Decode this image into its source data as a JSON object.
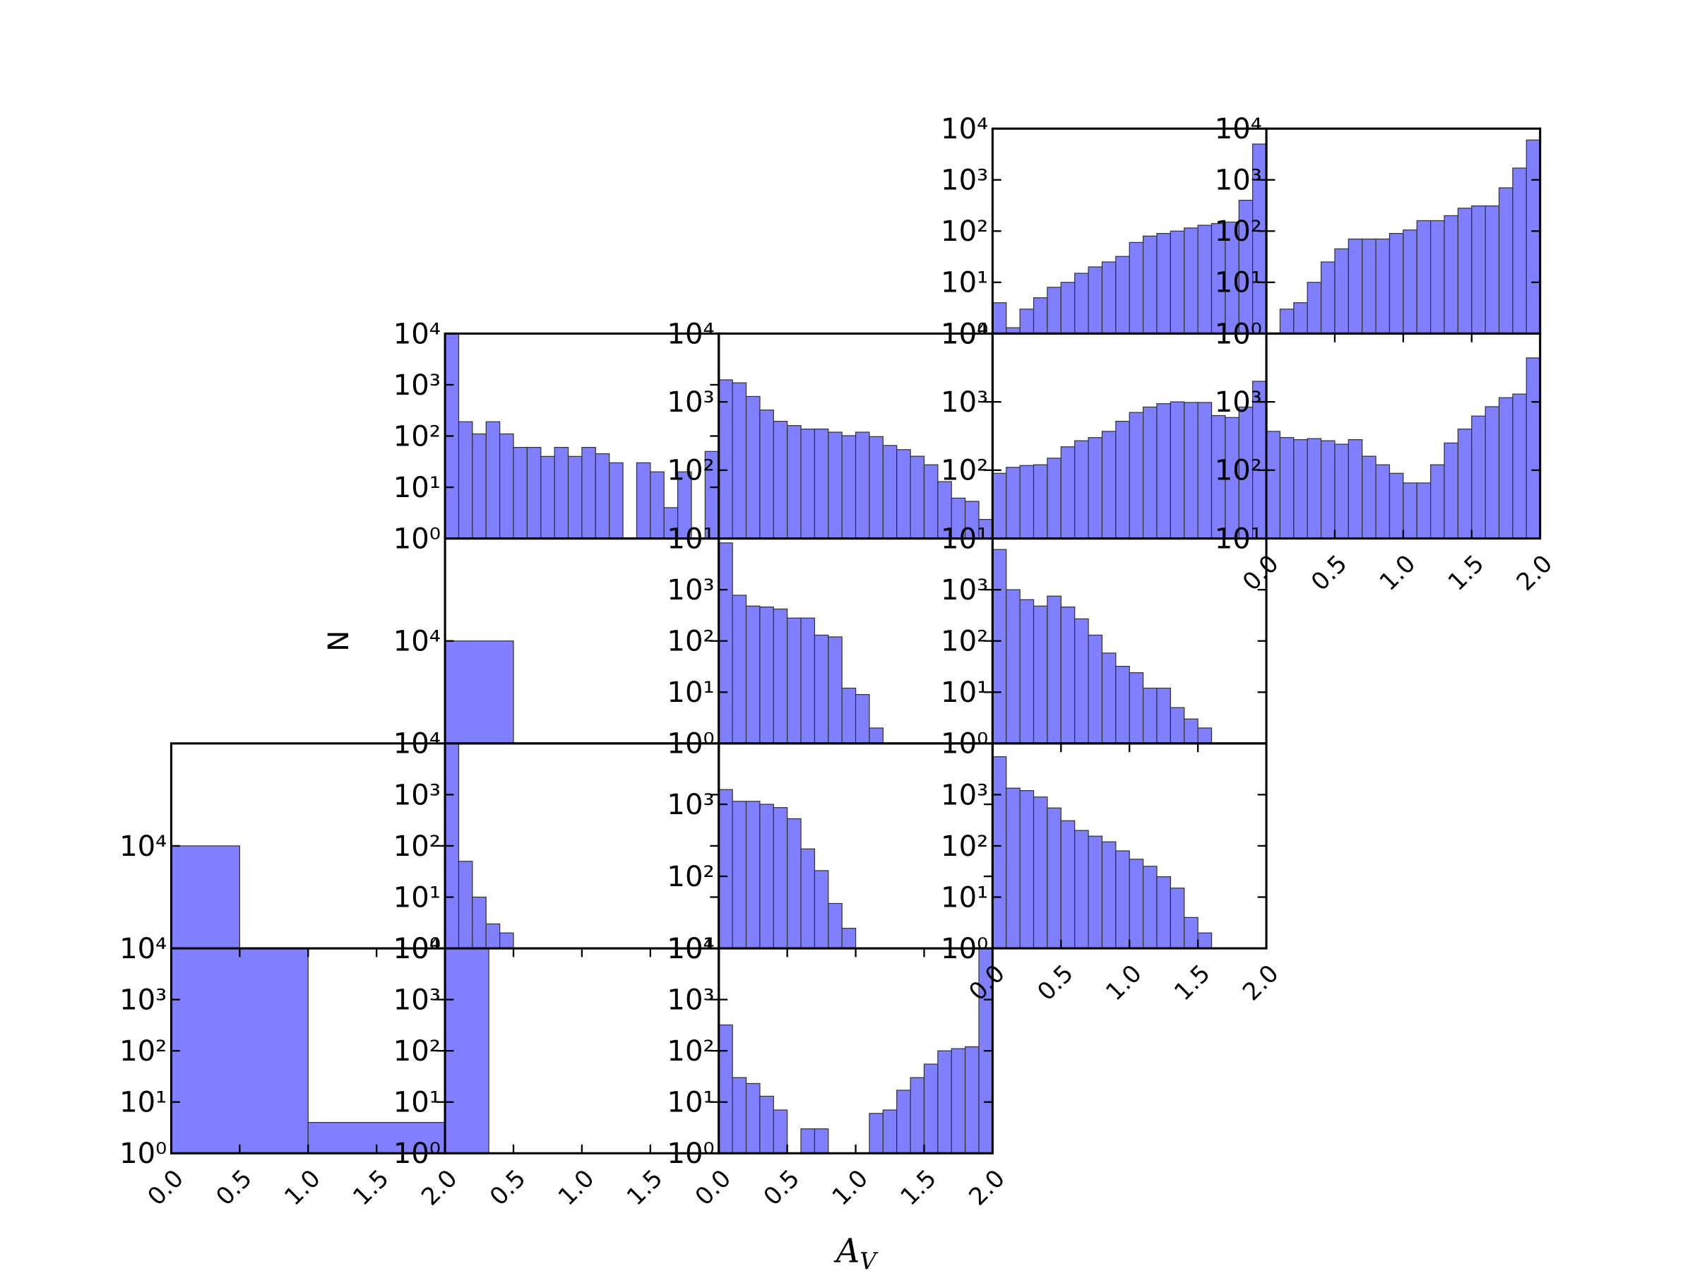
{
  "chart_data": [
    {
      "type": "histogram",
      "color": "#7f7fff",
      "xlim": [
        0,
        2
      ],
      "ylim": [
        1,
        10000
      ],
      "log_y": true,
      "bins": [
        0,
        0.1,
        0.2,
        0.3,
        0.4,
        0.5,
        0.6,
        0.7,
        0.8,
        0.9,
        1,
        1.1,
        1.2,
        1.3,
        1.4,
        1.5,
        1.6,
        1.7,
        1.8,
        1.9,
        2
      ],
      "values": [
        4,
        1.3,
        3,
        5,
        8,
        10,
        15,
        20,
        25,
        32,
        60,
        80,
        90,
        100,
        115,
        130,
        140,
        150,
        400,
        5000
      ],
      "yticks": [
        {
          "value": 1,
          "label": "10⁰"
        },
        {
          "value": 10,
          "label": "10¹"
        },
        {
          "value": 100,
          "label": "10²"
        },
        {
          "value": 1000,
          "label": "10³"
        },
        {
          "value": 10000,
          "label": "10⁴"
        }
      ]
    },
    {
      "type": "histogram",
      "color": "#7f7fff",
      "xlim": [
        0,
        2
      ],
      "ylim": [
        1,
        10000
      ],
      "log_y": true,
      "bins": [
        0,
        0.1,
        0.2,
        0.3,
        0.4,
        0.5,
        0.6,
        0.7,
        0.8,
        0.9,
        1,
        1.1,
        1.2,
        1.3,
        1.4,
        1.5,
        1.6,
        1.7,
        1.8,
        1.9,
        2
      ],
      "values": [
        0,
        3,
        4,
        10,
        25,
        45,
        70,
        70,
        70,
        90,
        105,
        160,
        160,
        200,
        280,
        310,
        310,
        700,
        1700,
        6000
      ],
      "yticks": [
        {
          "value": 1,
          "label": "10⁰"
        },
        {
          "value": 10,
          "label": "10¹"
        },
        {
          "value": 100,
          "label": "10²"
        },
        {
          "value": 1000,
          "label": "10³"
        },
        {
          "value": 10000,
          "label": "10⁴"
        }
      ]
    },
    {
      "type": "histogram",
      "color": "#7f7fff",
      "xlim": [
        0,
        2
      ],
      "ylim": [
        1,
        10000
      ],
      "log_y": true,
      "bins": [
        0,
        0.1,
        0.2,
        0.3,
        0.4,
        0.5,
        0.6,
        0.7,
        0.8,
        0.9,
        1,
        1.1,
        1.2,
        1.3,
        1.4,
        1.5,
        1.6,
        1.7,
        1.8,
        1.9,
        2
      ],
      "values": [
        10000,
        190,
        110,
        190,
        110,
        60,
        60,
        40,
        60,
        40,
        60,
        45,
        30,
        0,
        30,
        20,
        4,
        20,
        0,
        50
      ],
      "yticks": [
        {
          "value": 1,
          "label": "10⁰"
        },
        {
          "value": 10,
          "label": "10¹"
        },
        {
          "value": 100,
          "label": "10²"
        },
        {
          "value": 1000,
          "label": "10³"
        },
        {
          "value": 10000,
          "label": "10⁴"
        }
      ]
    },
    {
      "type": "histogram",
      "color": "#7f7fff",
      "xlim": [
        0,
        2
      ],
      "ylim": [
        10,
        10000
      ],
      "log_y": true,
      "bins": [
        0,
        0.1,
        0.2,
        0.3,
        0.4,
        0.5,
        0.6,
        0.7,
        0.8,
        0.9,
        1,
        1.1,
        1.2,
        1.3,
        1.4,
        1.5,
        1.6,
        1.7,
        1.8,
        1.9,
        2
      ],
      "values": [
        2100,
        1900,
        1200,
        760,
        520,
        450,
        400,
        400,
        360,
        320,
        360,
        310,
        230,
        200,
        160,
        120,
        68,
        39,
        35,
        19
      ],
      "yticks": [
        {
          "value": 10,
          "label": "10¹"
        },
        {
          "value": 100,
          "label": "10²"
        },
        {
          "value": 1000,
          "label": "10³"
        },
        {
          "value": 10000,
          "label": "10⁴"
        }
      ]
    },
    {
      "type": "histogram",
      "color": "#7f7fff",
      "xlim": [
        0,
        2
      ],
      "ylim": [
        10,
        10000
      ],
      "log_y": true,
      "bins": [
        0,
        0.1,
        0.2,
        0.3,
        0.4,
        0.5,
        0.6,
        0.7,
        0.8,
        0.9,
        1,
        1.1,
        1.2,
        1.3,
        1.4,
        1.5,
        1.6,
        1.7,
        1.8,
        1.9,
        2
      ],
      "values": [
        90,
        110,
        117,
        120,
        150,
        220,
        270,
        300,
        370,
        520,
        700,
        840,
        940,
        1000,
        980,
        980,
        630,
        590,
        840,
        2000
      ],
      "yticks": [
        {
          "value": 10,
          "label": "10¹"
        },
        {
          "value": 100,
          "label": "10²"
        },
        {
          "value": 1000,
          "label": "10³"
        },
        {
          "value": 10000,
          "label": "10⁴"
        }
      ]
    },
    {
      "type": "histogram",
      "color": "#7f7fff",
      "xlim": [
        0,
        2
      ],
      "ylim": [
        10,
        10000
      ],
      "log_y": true,
      "bins": [
        0,
        0.1,
        0.2,
        0.3,
        0.4,
        0.5,
        0.6,
        0.7,
        0.8,
        0.9,
        1,
        1.1,
        1.2,
        1.3,
        1.4,
        1.5,
        1.6,
        1.7,
        1.8,
        1.9,
        2
      ],
      "values": [
        370,
        300,
        280,
        290,
        270,
        240,
        280,
        160,
        120,
        90,
        65,
        65,
        120,
        250,
        400,
        620,
        850,
        1150,
        1300,
        4400
      ],
      "yticks": [
        {
          "value": 10,
          "label": "10¹"
        },
        {
          "value": 100,
          "label": "10²"
        },
        {
          "value": 1000,
          "label": "10³"
        }
      ],
      "xticks": [
        {
          "value": 0,
          "label": "0.0"
        },
        {
          "value": 0.5,
          "label": "0.5"
        },
        {
          "value": 1,
          "label": "1.0"
        },
        {
          "value": 1.5,
          "label": "1.5"
        },
        {
          "value": 2,
          "label": "2.0"
        }
      ]
    },
    {
      "type": "histogram",
      "color": "#7f7fff",
      "xlim": [
        0,
        2
      ],
      "ylim": [
        1000,
        100000
      ],
      "log_y": true,
      "bins": [
        0,
        0.5,
        1,
        1.5,
        2
      ],
      "values": [
        10000,
        0,
        0,
        0
      ],
      "yticks": [
        {
          "value": 10000,
          "label": "10⁴"
        }
      ]
    },
    {
      "type": "histogram",
      "color": "#7f7fff",
      "xlim": [
        0,
        2
      ],
      "ylim": [
        1,
        10000
      ],
      "log_y": true,
      "bins": [
        0,
        0.1,
        0.2,
        0.3,
        0.4,
        0.5,
        0.6,
        0.7,
        0.8,
        0.9,
        1,
        1.1,
        1.2,
        1.3,
        1.4,
        1.5,
        1.6,
        1.7,
        1.8,
        1.9,
        2
      ],
      "values": [
        8200,
        780,
        480,
        460,
        420,
        280,
        280,
        130,
        120,
        12,
        9,
        2,
        0,
        0,
        0,
        0,
        0,
        0,
        0,
        0
      ],
      "yticks": [
        {
          "value": 1,
          "label": "10⁰"
        },
        {
          "value": 10,
          "label": "10¹"
        },
        {
          "value": 100,
          "label": "10²"
        },
        {
          "value": 1000,
          "label": "10³"
        }
      ]
    },
    {
      "type": "histogram",
      "color": "#7f7fff",
      "xlim": [
        0,
        2
      ],
      "ylim": [
        1,
        10000
      ],
      "log_y": true,
      "bins": [
        0,
        0.1,
        0.2,
        0.3,
        0.4,
        0.5,
        0.6,
        0.7,
        0.8,
        0.9,
        1,
        1.1,
        1.2,
        1.3,
        1.4,
        1.5,
        1.6,
        1.7,
        1.8,
        1.9,
        2
      ],
      "values": [
        6100,
        1000,
        640,
        480,
        750,
        460,
        270,
        130,
        58,
        32,
        24,
        12,
        12,
        5,
        3,
        2,
        0,
        0,
        0,
        0
      ],
      "yticks": [
        {
          "value": 1,
          "label": "10⁰"
        },
        {
          "value": 10,
          "label": "10¹"
        },
        {
          "value": 100,
          "label": "10²"
        },
        {
          "value": 1000,
          "label": "10³"
        }
      ]
    },
    {
      "type": "histogram",
      "color": "#7f7fff",
      "xlim": [
        0,
        2
      ],
      "ylim": [
        1000,
        100000
      ],
      "log_y": true,
      "bins": [
        0,
        0.5,
        1,
        1.5,
        2
      ],
      "values": [
        10000,
        0,
        0,
        0
      ],
      "yticks": [
        {
          "value": 10000,
          "label": "10⁴"
        }
      ]
    },
    {
      "type": "histogram",
      "color": "#7f7fff",
      "xlim": [
        0,
        2
      ],
      "ylim": [
        1,
        10000
      ],
      "log_y": true,
      "bins": [
        0,
        0.1,
        0.2,
        0.3,
        0.4,
        0.5,
        0.6,
        0.7,
        0.8,
        0.9,
        1,
        1.1,
        1.2,
        1.3,
        1.4,
        1.5,
        1.6,
        1.7,
        1.8,
        1.9,
        2
      ],
      "values": [
        10000,
        50,
        10,
        3,
        2,
        0,
        0,
        0,
        0,
        0,
        0,
        0,
        0,
        0,
        0,
        0,
        0,
        0,
        0,
        0
      ],
      "yticks": [
        {
          "value": 1,
          "label": "10⁰"
        },
        {
          "value": 10,
          "label": "10¹"
        },
        {
          "value": 100,
          "label": "10²"
        },
        {
          "value": 1000,
          "label": "10³"
        },
        {
          "value": 10000,
          "label": "10⁴"
        }
      ]
    },
    {
      "type": "histogram",
      "color": "#7f7fff",
      "xlim": [
        0,
        2
      ],
      "ylim": [
        10,
        7000
      ],
      "log_y": true,
      "bins": [
        0,
        0.1,
        0.2,
        0.3,
        0.4,
        0.5,
        0.6,
        0.7,
        0.8,
        0.9,
        1,
        1.1,
        1.2,
        1.3,
        1.4,
        1.5,
        1.6,
        1.7,
        1.8,
        1.9,
        2
      ],
      "values": [
        1600,
        1100,
        1100,
        1000,
        900,
        630,
        240,
        120,
        42,
        19,
        0,
        0,
        0,
        0,
        0,
        0,
        0,
        0,
        0,
        0
      ],
      "yticks": [
        {
          "value": 10,
          "label": "10¹"
        },
        {
          "value": 100,
          "label": "10²"
        },
        {
          "value": 1000,
          "label": "10³"
        }
      ]
    },
    {
      "type": "histogram",
      "color": "#7f7fff",
      "xlim": [
        0,
        2
      ],
      "ylim": [
        1,
        10000
      ],
      "log_y": true,
      "bins": [
        0,
        0.1,
        0.2,
        0.3,
        0.4,
        0.5,
        0.6,
        0.7,
        0.8,
        0.9,
        1,
        1.1,
        1.2,
        1.3,
        1.4,
        1.5,
        1.6,
        1.7,
        1.8,
        1.9,
        2
      ],
      "values": [
        5500,
        1340,
        1200,
        900,
        550,
        310,
        200,
        155,
        120,
        80,
        55,
        40,
        25,
        15,
        4,
        2,
        0,
        0,
        0,
        0
      ],
      "yticks": [
        {
          "value": 1,
          "label": "10⁰"
        },
        {
          "value": 10,
          "label": "10¹"
        },
        {
          "value": 100,
          "label": "10²"
        },
        {
          "value": 1000,
          "label": "10³"
        }
      ],
      "xticks": [
        {
          "value": 0,
          "label": "0.0"
        },
        {
          "value": 0.5,
          "label": "0.5"
        },
        {
          "value": 1,
          "label": "1.0"
        },
        {
          "value": 1.5,
          "label": "1.5"
        },
        {
          "value": 2,
          "label": "2.0"
        }
      ]
    },
    {
      "type": "histogram",
      "color": "#7f7fff",
      "xlim": [
        0,
        2
      ],
      "ylim": [
        1,
        10000
      ],
      "log_y": true,
      "bins": [
        0,
        1,
        2
      ],
      "values": [
        10000,
        4
      ],
      "yticks": [
        {
          "value": 1,
          "label": "10⁰"
        },
        {
          "value": 10,
          "label": "10¹"
        },
        {
          "value": 100,
          "label": "10²"
        },
        {
          "value": 1000,
          "label": "10³"
        },
        {
          "value": 10000,
          "label": "10⁴"
        }
      ],
      "xticks": [
        {
          "value": 0,
          "label": "0.0"
        },
        {
          "value": 0.5,
          "label": "0.5"
        },
        {
          "value": 1,
          "label": "1.0"
        },
        {
          "value": 1.5,
          "label": "1.5"
        },
        {
          "value": 2,
          "label": "2.0"
        }
      ]
    },
    {
      "type": "histogram",
      "color": "#7f7fff",
      "xlim": [
        0,
        2
      ],
      "ylim": [
        1,
        10000
      ],
      "log_y": true,
      "bins": [
        0,
        0.32
      ],
      "values": [
        10000
      ],
      "yticks": [
        {
          "value": 1,
          "label": "10⁰"
        },
        {
          "value": 10,
          "label": "10¹"
        },
        {
          "value": 100,
          "label": "10²"
        },
        {
          "value": 1000,
          "label": "10³"
        },
        {
          "value": 10000,
          "label": "10⁴"
        }
      ],
      "xticks": [
        {
          "value": 0.5,
          "label": "0.5"
        },
        {
          "value": 1,
          "label": "1.0"
        },
        {
          "value": 1.5,
          "label": "1.5"
        }
      ]
    },
    {
      "type": "histogram",
      "color": "#7f7fff",
      "xlim": [
        0,
        2
      ],
      "ylim": [
        1,
        10000
      ],
      "log_y": true,
      "bins": [
        0,
        0.1,
        0.2,
        0.3,
        0.4,
        0.5,
        0.6,
        0.7,
        0.8,
        0.9,
        1,
        1.1,
        1.2,
        1.3,
        1.4,
        1.5,
        1.6,
        1.7,
        1.8,
        1.9,
        2
      ],
      "values": [
        320,
        30,
        23,
        13,
        7,
        0,
        3,
        3,
        0,
        0,
        0,
        6,
        7,
        17,
        30,
        55,
        100,
        110,
        120,
        10000
      ],
      "yticks": [
        {
          "value": 1,
          "label": "10⁰"
        },
        {
          "value": 10,
          "label": "10¹"
        },
        {
          "value": 100,
          "label": "10²"
        },
        {
          "value": 1000,
          "label": "10³"
        },
        {
          "value": 10000,
          "label": "10⁴"
        }
      ],
      "xticks": [
        {
          "value": 0,
          "label": "0.0"
        },
        {
          "value": 0.5,
          "label": "0.5"
        },
        {
          "value": 1,
          "label": "1.0"
        },
        {
          "value": 1.5,
          "label": "1.5"
        },
        {
          "value": 2,
          "label": "2.0"
        }
      ]
    }
  ],
  "xlabel": "A",
  "xlabel_subscript": "V",
  "ylabel": "N"
}
